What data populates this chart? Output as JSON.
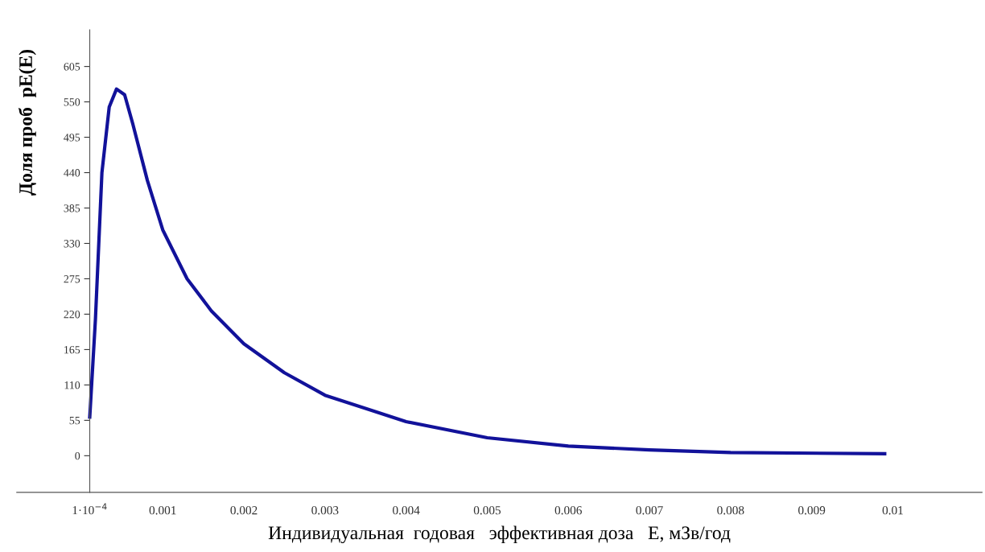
{
  "chart_data": {
    "type": "line",
    "xlabel": "Индивидуальная  годовая   эффективная доза   E, мЗв/год",
    "ylabel": "Доля проб  pE(E)",
    "x": [
      0.0001,
      0.00017,
      0.00025,
      0.00034,
      0.00043,
      0.00053,
      0.00063,
      0.00081,
      0.001,
      0.0013,
      0.0016,
      0.002,
      0.0025,
      0.003,
      0.004,
      0.005,
      0.006,
      0.007,
      0.008,
      0.0099
    ],
    "series": [
      {
        "color": "#12129a",
        "values": [
          60,
          212,
          440,
          542,
          570,
          561,
          516,
          428,
          351,
          275,
          225,
          174,
          129,
          94,
          53,
          28,
          15,
          9,
          5,
          3
        ]
      }
    ],
    "xlim": [
      -0.0008,
      0.0111
    ],
    "ylim": [
      -57,
      662
    ],
    "xticks": [
      {
        "value": 0.0001,
        "label": "1·10$^{−4}$"
      },
      0.001,
      0.002,
      0.003,
      0.004,
      0.005,
      0.006,
      0.007,
      0.008,
      0.009,
      0.01
    ],
    "yticks": [
      0,
      55,
      110,
      165,
      220,
      275,
      330,
      385,
      440,
      495,
      550,
      605
    ],
    "grid": false,
    "marker": "none",
    "line_style": "solid"
  }
}
